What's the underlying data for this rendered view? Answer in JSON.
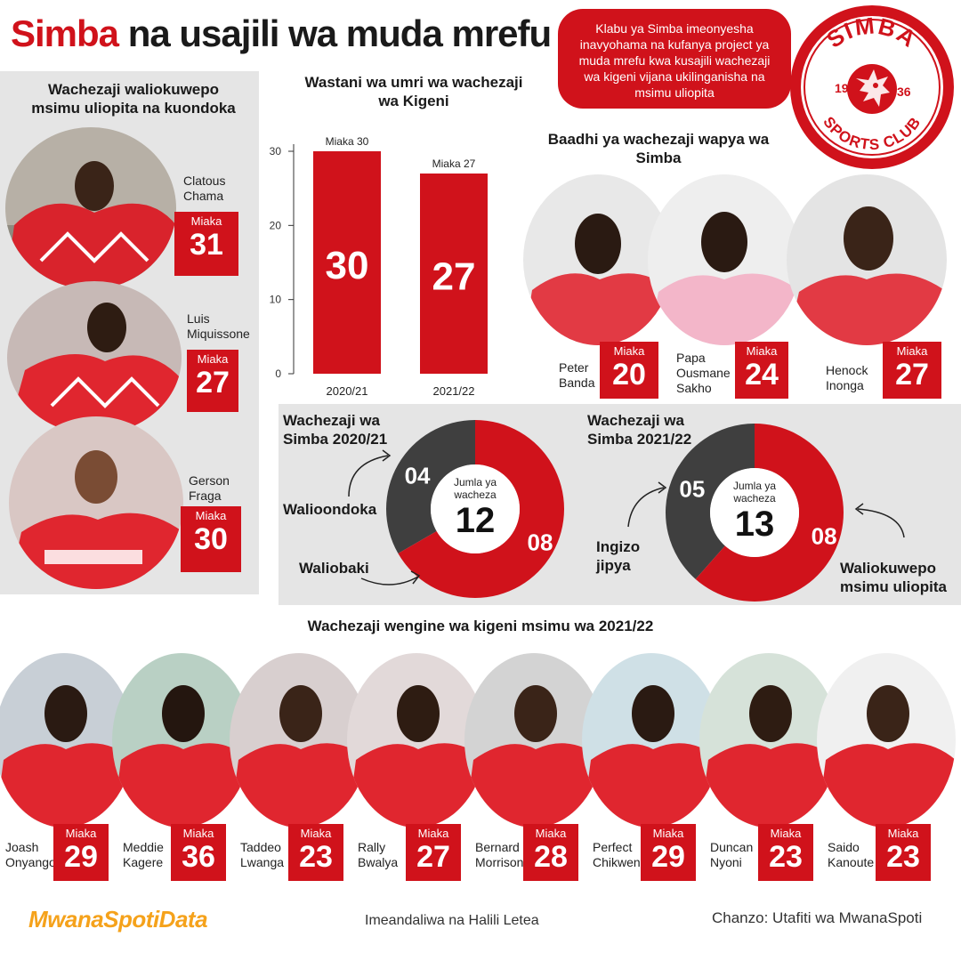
{
  "header": {
    "title_highlight": "Simba",
    "title_rest": " na usajili wa muda mrefu"
  },
  "intro": "Klabu ya Simba imeonyesha inavyohama na kufanya project ya muda mrefu kwa kusajili wachezaji wa kigeni vijana ukilinganisha na msimu uliopita",
  "logo": {
    "top_text": "SIMBA",
    "bottom_text": "SPORTS CLUB",
    "year_left": "19",
    "year_right": "36"
  },
  "age_label": "Miaka",
  "departed": {
    "heading": "Wachezaji waliokuwepo msimu uliopita na kuondoka",
    "players": [
      {
        "name_line1": "Clatous",
        "name_line2": "Chama",
        "age": "31"
      },
      {
        "name_line1": "Luis",
        "name_line2": "Miquissone",
        "age": "27"
      },
      {
        "name_line1": "Gerson",
        "name_line2": "Fraga",
        "age": "30"
      }
    ]
  },
  "new_players": {
    "heading": "Baadhi ya wachezaji wapya wa Simba",
    "players": [
      {
        "name_line1": "Peter",
        "name_line2": "Banda",
        "name_line3": "",
        "age": "20"
      },
      {
        "name_line1": "Papa",
        "name_line2": "Ousmane",
        "name_line3": "Sakho",
        "age": "24"
      },
      {
        "name_line1": "Henock",
        "name_line2": "Inonga",
        "name_line3": "",
        "age": "27"
      }
    ]
  },
  "donuts": [
    {
      "title_line1": "Wachezaji wa",
      "title_line2": "Simba 2020/21",
      "center_line1": "Jumla ya",
      "center_line2": "wacheza",
      "total": "12",
      "grey_value": 4,
      "red_value": 8,
      "grey_label": "04",
      "red_label": "08",
      "callout_grey": "Walioondoka",
      "callout_red": "Waliobaki"
    },
    {
      "title_line1": "Wachezaji wa",
      "title_line2": "Simba 2021/22",
      "center_line1": "Jumla ya",
      "center_line2": "wacheza",
      "total": "13",
      "grey_value": 5,
      "red_value": 8,
      "grey_label": "05",
      "red_label": "08",
      "callout_grey_line1": "Ingizo",
      "callout_grey_line2": "jipya",
      "callout_red_line1": "Waliokuwepo",
      "callout_red_line2": "msimu uliopita"
    }
  ],
  "others": {
    "heading": "Wachezaji wengine wa kigeni msimu wa 2021/22",
    "players": [
      {
        "name_line1": "Joash",
        "name_line2": "Onyango",
        "age": "29"
      },
      {
        "name_line1": "Meddie",
        "name_line2": "Kagere",
        "age": "36"
      },
      {
        "name_line1": "Taddeo",
        "name_line2": "Lwanga",
        "age": "23"
      },
      {
        "name_line1": "Rally",
        "name_line2": "Bwalya",
        "age": "27"
      },
      {
        "name_line1": "Bernard",
        "name_line2": "Morrison",
        "age": "28"
      },
      {
        "name_line1": "Perfect",
        "name_line2": "Chikwende",
        "age": "29"
      },
      {
        "name_line1": "Duncan",
        "name_line2": "Nyoni",
        "age": "23"
      },
      {
        "name_line1": "Saido",
        "name_line2": "Kanoute",
        "age": "23"
      }
    ]
  },
  "footer": {
    "brand": "MwanaSpotiData",
    "credit": "Imeandaliwa na Halili Letea",
    "source": "Chanzo: Utafiti wa MwanaSpoti"
  },
  "colors": {
    "accent": "#d0121b",
    "grey": "#3f3f3f",
    "panel": "#e5e5e5",
    "brand": "#f5a21b"
  },
  "chart_data": [
    {
      "type": "bar",
      "title": "Wastani wa umri wa wachezaji wa  Kigeni",
      "categories": [
        "2020/21",
        "2021/22"
      ],
      "values": [
        30,
        27
      ],
      "value_labels": [
        "30",
        "27"
      ],
      "annotations": [
        "Miaka 30",
        "Miaka 27"
      ],
      "yticks": [
        0,
        10,
        20,
        30
      ],
      "ylim": [
        0,
        30
      ],
      "grid": false
    },
    {
      "type": "pie",
      "title": "Wachezaji wa Simba 2020/21",
      "categories": [
        "Walioondoka",
        "Waliobaki"
      ],
      "values": [
        4,
        8
      ]
    },
    {
      "type": "pie",
      "title": "Wachezaji wa Simba 2021/22",
      "categories": [
        "Ingizo jipya",
        "Waliokuwepo msimu uliopita"
      ],
      "values": [
        5,
        8
      ]
    }
  ]
}
